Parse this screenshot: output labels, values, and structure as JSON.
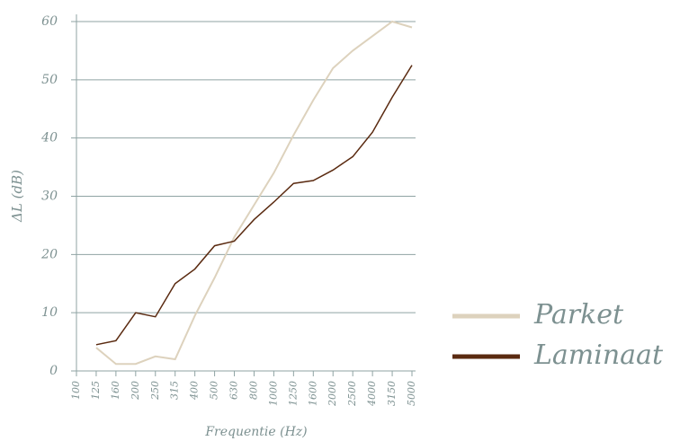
{
  "chart_data": {
    "type": "line",
    "x_label": "Frequentie (Hz)",
    "y_label": "ΔL (dB)",
    "categories": [
      "100",
      "125",
      "160",
      "200",
      "250",
      "315",
      "400",
      "500",
      "630",
      "800",
      "1000",
      "1250",
      "1600",
      "2000",
      "2500",
      "4000",
      "3150",
      "5000"
    ],
    "series": [
      {
        "name": "Parket",
        "color": "#ddd2bd",
        "values": [
          null,
          4,
          1.2,
          1.2,
          2.5,
          2,
          9.5,
          16,
          23,
          28.5,
          34,
          40.5,
          46.5,
          52,
          55,
          57.5,
          60,
          59
        ]
      },
      {
        "name": "Laminaat",
        "color": "#5a2a10",
        "values": [
          null,
          4.5,
          5.2,
          10,
          9.3,
          15,
          17.5,
          21.5,
          22.3,
          26,
          29,
          32.2,
          32.7,
          34.5,
          36.8,
          41,
          47,
          52.5
        ]
      }
    ],
    "ylim": [
      0,
      60
    ],
    "yticks": [
      0,
      10,
      20,
      30,
      40,
      50,
      60
    ],
    "grid": true,
    "legend": "right"
  }
}
